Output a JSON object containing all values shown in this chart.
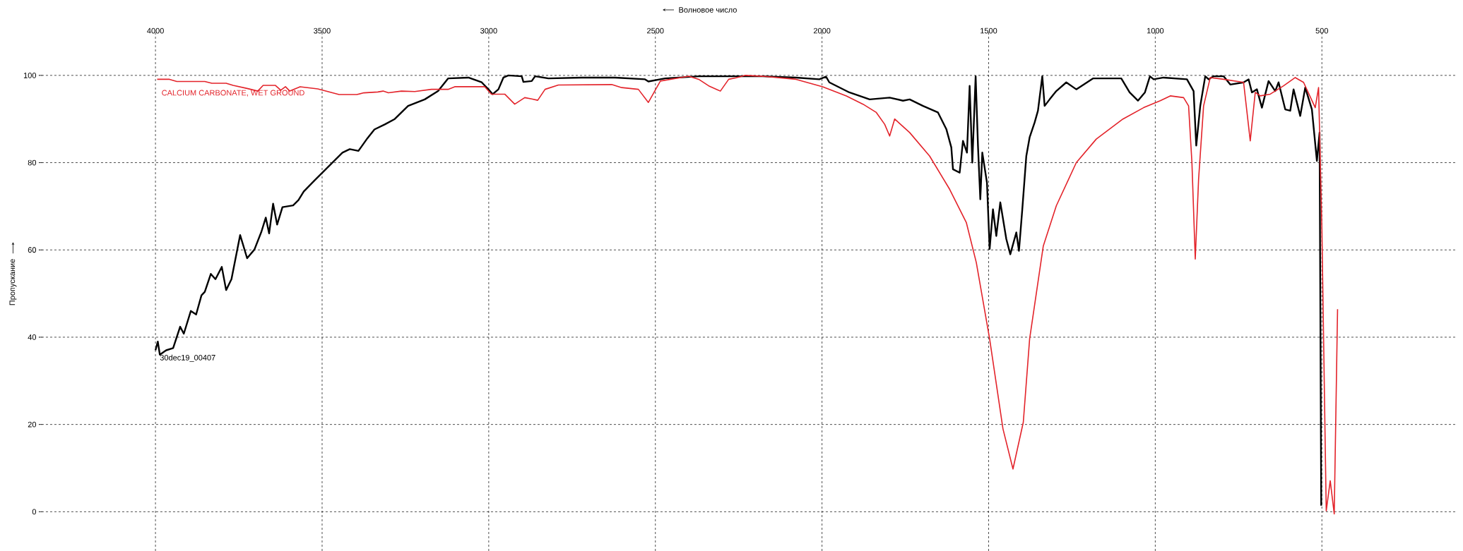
{
  "chart_data": {
    "type": "line",
    "xlabel": "Волновое число",
    "ylabel": "Пропускание",
    "xlim": [
      4350,
      100
    ],
    "ylim": [
      -9,
      110
    ],
    "xticks": [
      4000,
      3500,
      3000,
      2500,
      2000,
      1500,
      1000,
      500
    ],
    "yticks": [
      0,
      20,
      40,
      60,
      80,
      100
    ],
    "grid": true,
    "series": [
      {
        "name": "30dec19_00407",
        "color": "#000000",
        "x": [
          4000,
          3993,
          3987,
          3968,
          3947,
          3926,
          3915,
          3894,
          3878,
          3862,
          3852,
          3834,
          3820,
          3801,
          3788,
          3772,
          3746,
          3725,
          3703,
          3682,
          3669,
          3659,
          3647,
          3635,
          3619,
          3587,
          3571,
          3555,
          3523,
          3481,
          3439,
          3417,
          3391,
          3364,
          3343,
          3311,
          3282,
          3242,
          3192,
          3152,
          3122,
          3061,
          3021,
          3001,
          2988,
          2971,
          2956,
          2941,
          2901,
          2896,
          2871,
          2861,
          2821,
          2721,
          2621,
          2531,
          2521,
          2471,
          2370,
          2178,
          2078,
          2008,
          1988,
          1978,
          1918,
          1857,
          1797,
          1757,
          1737,
          1697,
          1652,
          1627,
          1612,
          1607,
          1587,
          1577,
          1565,
          1557,
          1549,
          1539,
          1532,
          1525,
          1519,
          1505,
          1497,
          1487,
          1477,
          1465,
          1447,
          1435,
          1417,
          1409,
          1399,
          1387,
          1377,
          1362,
          1352,
          1339,
          1332,
          1317,
          1297,
          1267,
          1237,
          1187,
          1102,
          1077,
          1052,
          1031,
          1016,
          1005,
          975,
          905,
          885,
          877,
          865,
          850,
          840,
          825,
          795,
          775,
          735,
          720,
          710,
          695,
          680,
          660,
          640,
          630,
          610,
          595,
          585,
          565,
          550,
          530,
          515,
          507,
          502
        ],
        "values": [
          37,
          39,
          36,
          37,
          37.5,
          42.4,
          40.8,
          46,
          45.2,
          49.6,
          50.4,
          54.5,
          53.3,
          56.1,
          50.8,
          53.3,
          63.4,
          58.1,
          60.1,
          64.2,
          67.4,
          63.8,
          70.6,
          65.8,
          69.8,
          70.2,
          71.4,
          73.4,
          75.9,
          79.1,
          82.3,
          83.1,
          82.7,
          85.6,
          87.6,
          88.8,
          90,
          93,
          94.5,
          96.4,
          99.3,
          99.5,
          98.4,
          96.8,
          95.7,
          96.8,
          99.5,
          100,
          99.8,
          98.5,
          98.7,
          99.8,
          99.3,
          99.5,
          99.5,
          99.1,
          98.6,
          99.3,
          99.8,
          99.8,
          99.5,
          99.1,
          99.7,
          98.4,
          96.1,
          94.5,
          94.9,
          94.2,
          94.5,
          93,
          91.5,
          87.7,
          83.5,
          78.5,
          77.7,
          85,
          82.3,
          97.6,
          80,
          99.8,
          83.9,
          71.6,
          82.3,
          75.4,
          60.2,
          69.3,
          63.2,
          70.9,
          62.5,
          59,
          64,
          59.8,
          69.3,
          81.5,
          85.8,
          89.2,
          91.9,
          99.8,
          93,
          94.5,
          96.4,
          98.4,
          96.8,
          99.3,
          99.3,
          96.1,
          94.2,
          96.1,
          99.8,
          99.1,
          99.5,
          99.1,
          96.4,
          83.9,
          93,
          99.8,
          99.1,
          99.8,
          99.8,
          97.9,
          98.4,
          99.1,
          96.1,
          96.8,
          92.6,
          98.7,
          96.4,
          98.4,
          92.2,
          91.9,
          96.8,
          90.7,
          97.2,
          92.2,
          80.4,
          86.9,
          1.4
        ]
      },
      {
        "name": "CALCIUM CARBONATE, WET GROUND",
        "color": "#e3232a",
        "x": [
          3995,
          3958,
          3936,
          3852,
          3831,
          3788,
          3767,
          3725,
          3693,
          3677,
          3640,
          3624,
          3610,
          3597,
          3566,
          3513,
          3449,
          3396,
          3375,
          3333,
          3317,
          3301,
          3262,
          3222,
          3172,
          3122,
          3102,
          3012,
          2992,
          2952,
          2922,
          2892,
          2871,
          2853,
          2831,
          2791,
          2631,
          2601,
          2551,
          2521,
          2485,
          2400,
          2370,
          2340,
          2305,
          2280,
          2260,
          2230,
          2178,
          2078,
          1998,
          1927,
          1877,
          1837,
          1812,
          1797,
          1782,
          1737,
          1677,
          1617,
          1567,
          1537,
          1497,
          1457,
          1427,
          1396,
          1377,
          1336,
          1297,
          1237,
          1177,
          1097,
          1035,
          985,
          955,
          915,
          900,
          890,
          880,
          870,
          855,
          835,
          795,
          735,
          715,
          700,
          685,
          655,
          615,
          580,
          555,
          520,
          510,
          500,
          487,
          475,
          463,
          453
        ],
        "values": [
          99.1,
          99.1,
          98.6,
          98.6,
          98.2,
          98.2,
          97.7,
          97,
          96.4,
          97.7,
          97.7,
          96.6,
          97.4,
          96.4,
          97.4,
          96.9,
          95.6,
          95.6,
          96,
          96.2,
          96.4,
          96,
          96.4,
          96.3,
          96.8,
          96.8,
          97.4,
          97.4,
          95.7,
          95.7,
          93.4,
          94.9,
          94.6,
          94.3,
          96.8,
          97.8,
          97.9,
          97.2,
          96.8,
          93.8,
          98.7,
          99.8,
          99.1,
          97.6,
          96.4,
          99.1,
          99.4,
          100,
          99.8,
          99.1,
          97.4,
          95.3,
          93.4,
          91.5,
          88.8,
          86.1,
          90,
          86.9,
          81.5,
          73.9,
          66.3,
          57.1,
          39.6,
          19,
          9.8,
          20.5,
          39.6,
          60.9,
          70.1,
          80,
          85.4,
          90,
          92.6,
          94.2,
          95.3,
          94.9,
          93,
          80,
          57.9,
          76.2,
          93,
          99.5,
          99.1,
          98.4,
          85,
          96.1,
          95.3,
          95.7,
          97.6,
          99.5,
          98.4,
          92.6,
          97.2,
          64.8,
          0.2,
          7.1,
          -0.5,
          46.4
        ]
      }
    ]
  }
}
